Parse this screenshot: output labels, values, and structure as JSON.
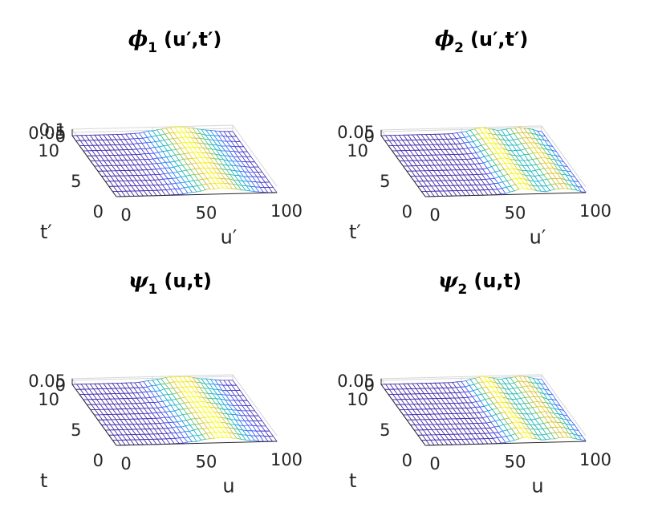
{
  "chart_data": [
    {
      "type": "surface",
      "title_symbol": "ϕ",
      "title_subscript": "1",
      "title_args": "(u′,t′)",
      "xlabel": "u′",
      "ylabel": "t′",
      "zlabel": "",
      "xlim": [
        0,
        100
      ],
      "ylim": [
        0,
        10
      ],
      "zlim": [
        0,
        0.1
      ],
      "xticks": [
        "0",
        "50",
        "100"
      ],
      "yticks": [
        "0",
        "5",
        "10"
      ],
      "zticks": [
        "0",
        "0.05",
        "0.1"
      ],
      "surface": {
        "peaks": [
          {
            "u": 65,
            "height": 0.09,
            "width": 13
          }
        ],
        "noise": 0.004
      }
    },
    {
      "type": "surface",
      "title_symbol": "ϕ",
      "title_subscript": "2",
      "title_args": "(u′,t′)",
      "xlabel": "u′",
      "ylabel": "t′",
      "zlabel": "",
      "xlim": [
        0,
        100
      ],
      "ylim": [
        0,
        10
      ],
      "zlim": [
        0,
        0.07
      ],
      "xticks": [
        "0",
        "50",
        "100"
      ],
      "yticks": [
        "0",
        "5",
        "10"
      ],
      "zticks": [
        "0",
        "0.05"
      ],
      "surface": {
        "peaks": [
          {
            "u": 62,
            "height": 0.066,
            "width": 7
          },
          {
            "u": 86,
            "height": 0.058,
            "width": 7
          }
        ],
        "noise": 0.004
      }
    },
    {
      "type": "surface",
      "title_symbol": "ψ",
      "title_subscript": "1",
      "title_args": "(u,t)",
      "xlabel": "u",
      "ylabel": "t",
      "zlabel": "",
      "xlim": [
        0,
        100
      ],
      "ylim": [
        0,
        10
      ],
      "zlim": [
        0,
        0.07
      ],
      "xticks": [
        "0",
        "50",
        "100"
      ],
      "yticks": [
        "0",
        "5",
        "10"
      ],
      "zticks": [
        "0",
        "0.05"
      ],
      "surface": {
        "peaks": [
          {
            "u": 66,
            "height": 0.065,
            "width": 12
          }
        ],
        "noise": 0.004
      }
    },
    {
      "type": "surface",
      "title_symbol": "ψ",
      "title_subscript": "2",
      "title_args": "(u,t)",
      "xlabel": "u",
      "ylabel": "t",
      "zlabel": "",
      "xlim": [
        0,
        100
      ],
      "ylim": [
        0,
        10
      ],
      "zlim": [
        0,
        0.07
      ],
      "xticks": [
        "0",
        "50",
        "100"
      ],
      "yticks": [
        "0",
        "5",
        "10"
      ],
      "zticks": [
        "0",
        "0.05"
      ],
      "surface": {
        "peaks": [
          {
            "u": 63,
            "height": 0.064,
            "width": 7
          },
          {
            "u": 86,
            "height": 0.058,
            "width": 7
          }
        ],
        "noise": 0.004
      }
    }
  ]
}
